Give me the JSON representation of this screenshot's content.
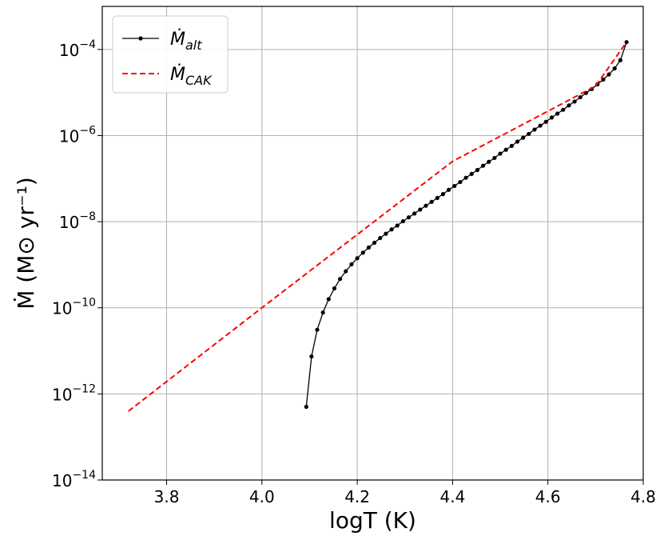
{
  "chart_data": {
    "type": "line",
    "xlabel": "logT (K)",
    "ylabel": "Ṁ  (M⊙ yr⁻¹)",
    "xlim": [
      3.665,
      4.8
    ],
    "ylim_log10": [
      -14,
      -3.0
    ],
    "y_scale": "log",
    "grid": true,
    "legend_position": "top-left",
    "x_ticks": [
      {
        "value": 3.8,
        "label": "3.8"
      },
      {
        "value": 4.0,
        "label": "4.0"
      },
      {
        "value": 4.2,
        "label": "4.2"
      },
      {
        "value": 4.4,
        "label": "4.4"
      },
      {
        "value": 4.6,
        "label": "4.6"
      },
      {
        "value": 4.8,
        "label": "4.8"
      }
    ],
    "y_ticks": [
      {
        "exp": -14,
        "base": "10",
        "sup": "−14"
      },
      {
        "exp": -12,
        "base": "10",
        "sup": "−12"
      },
      {
        "exp": -10,
        "base": "10",
        "sup": "−10"
      },
      {
        "exp": -8,
        "base": "10",
        "sup": "−8"
      },
      {
        "exp": -6,
        "base": "10",
        "sup": "−6"
      },
      {
        "exp": -4,
        "base": "10",
        "sup": "−4"
      }
    ],
    "series": [
      {
        "name": "Ṁalt",
        "name_main": "Ṁ",
        "name_sub": "alt",
        "color": "#000000",
        "style": "solid-markers",
        "x": [
          4.093,
          4.104,
          4.116,
          4.128,
          4.14,
          4.152,
          4.164,
          4.176,
          4.188,
          4.2,
          4.212,
          4.224,
          4.236,
          4.248,
          4.26,
          4.272,
          4.284,
          4.296,
          4.308,
          4.32,
          4.332,
          4.344,
          4.356,
          4.368,
          4.38,
          4.392,
          4.404,
          4.416,
          4.428,
          4.44,
          4.452,
          4.464,
          4.476,
          4.488,
          4.5,
          4.512,
          4.524,
          4.536,
          4.548,
          4.56,
          4.572,
          4.584,
          4.596,
          4.608,
          4.62,
          4.632,
          4.644,
          4.656,
          4.668,
          4.68,
          4.692,
          4.704,
          4.716,
          4.728,
          4.74,
          4.752,
          4.765
        ],
        "log10_y": [
          -12.3,
          -11.13,
          -10.51,
          -10.11,
          -9.8,
          -9.55,
          -9.33,
          -9.15,
          -8.99,
          -8.85,
          -8.72,
          -8.6,
          -8.49,
          -8.38,
          -8.28,
          -8.18,
          -8.09,
          -7.99,
          -7.9,
          -7.81,
          -7.72,
          -7.63,
          -7.54,
          -7.45,
          -7.36,
          -7.26,
          -7.17,
          -7.08,
          -6.98,
          -6.89,
          -6.8,
          -6.7,
          -6.61,
          -6.52,
          -6.42,
          -6.33,
          -6.24,
          -6.14,
          -6.05,
          -5.96,
          -5.86,
          -5.77,
          -5.68,
          -5.58,
          -5.49,
          -5.4,
          -5.3,
          -5.21,
          -5.11,
          -5.01,
          -4.92,
          -4.81,
          -4.7,
          -4.58,
          -4.44,
          -4.25,
          -3.83
        ]
      },
      {
        "name": "ṀCAK",
        "name_main": "Ṁ",
        "name_sub": "CAK",
        "color": "#ff0000",
        "style": "dashed",
        "x": [
          3.72,
          4.0,
          4.4,
          4.7,
          4.765
        ],
        "log10_y": [
          -12.4,
          -10.0,
          -6.6,
          -4.85,
          -3.83
        ]
      }
    ]
  }
}
